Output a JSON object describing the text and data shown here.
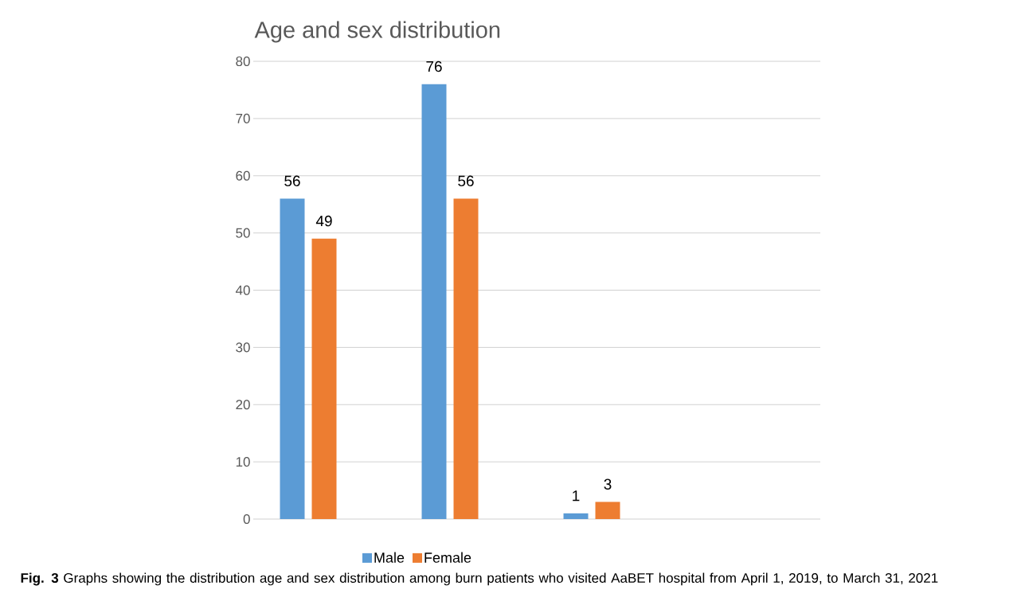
{
  "chart_data": {
    "type": "bar",
    "title": "Age and sex distribution",
    "categories": [
      null,
      null,
      null,
      null
    ],
    "series": [
      {
        "name": "Male",
        "color": "#5b9bd5",
        "values": [
          56,
          76,
          1,
          null
        ]
      },
      {
        "name": "Female",
        "color": "#ed7d31",
        "values": [
          49,
          56,
          3,
          null
        ]
      }
    ],
    "ylim": [
      0,
      80
    ],
    "yticks": [
      0,
      10,
      20,
      30,
      40,
      50,
      60,
      70,
      80
    ],
    "grid": "y",
    "legend": "bottom",
    "data_labels": true,
    "annotations": [
      "**Fig. 3** Graphs showing the distribution age and sex distribution among burn patients who visited AaBET hospital from April 1, 2019, to March 31, 2021"
    ]
  }
}
